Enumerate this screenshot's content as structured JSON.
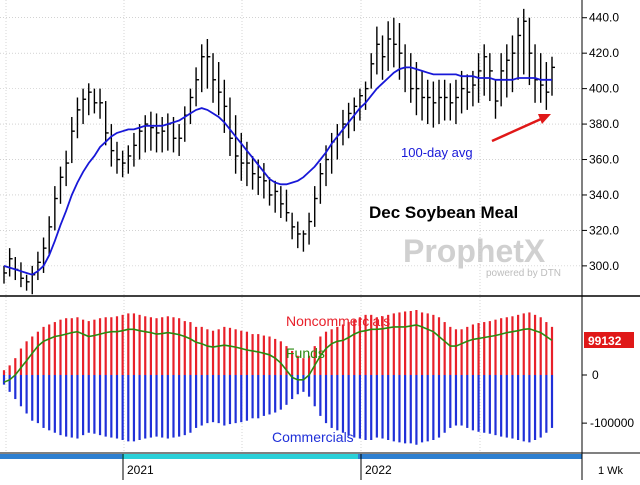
{
  "chart_data": [
    {
      "type": "line",
      "title": "Dec Soybean Meal",
      "subtitle": "",
      "xlabel": "",
      "ylabel": "",
      "ylim": [
        283,
        450
      ],
      "y_ticks": [
        300,
        320,
        340,
        360,
        380,
        400,
        420,
        440
      ],
      "grid": true,
      "annotations": [
        "100-day avg"
      ],
      "watermark": {
        "brand": "ProphetX",
        "tagline": "powered by DTN"
      },
      "series": [
        {
          "name": "Dec Soybean Meal (weekly range)",
          "type": "ohlc",
          "high": [
            300,
            310,
            305,
            302,
            295,
            300,
            308,
            316,
            328,
            345,
            356,
            365,
            384,
            395,
            400,
            403,
            400,
            400,
            393,
            380,
            370,
            365,
            368,
            375,
            380,
            385,
            387,
            386,
            384,
            386,
            384,
            380,
            390,
            400,
            412,
            425,
            428,
            420,
            415,
            405,
            395,
            385,
            375,
            370,
            362,
            360,
            358,
            350,
            348,
            345,
            343,
            330,
            325,
            320,
            330,
            345,
            358,
            368,
            375,
            380,
            388,
            392,
            395,
            400,
            404,
            420,
            435,
            430,
            438,
            440,
            437,
            425,
            420,
            415,
            410,
            405,
            404,
            405,
            405,
            403,
            405,
            410,
            408,
            410,
            420,
            425,
            420,
            405,
            420,
            425,
            430,
            440,
            445,
            440,
            425,
            420,
            415,
            418
          ],
          "low": [
            290,
            294,
            292,
            288,
            286,
            284,
            292,
            296,
            306,
            320,
            335,
            345,
            358,
            372,
            380,
            385,
            386,
            383,
            368,
            356,
            352,
            350,
            352,
            356,
            360,
            364,
            365,
            364,
            364,
            365,
            364,
            362,
            370,
            380,
            390,
            398,
            400,
            392,
            385,
            375,
            362,
            352,
            348,
            345,
            343,
            340,
            338,
            334,
            330,
            327,
            325,
            315,
            310,
            308,
            312,
            322,
            335,
            345,
            352,
            360,
            368,
            372,
            376,
            382,
            388,
            400,
            408,
            405,
            410,
            412,
            405,
            398,
            392,
            385,
            382,
            380,
            378,
            380,
            382,
            382,
            380,
            386,
            388,
            390,
            392,
            396,
            393,
            383,
            390,
            395,
            398,
            405,
            408,
            402,
            392,
            392,
            388,
            396
          ],
          "close": [
            296,
            304,
            298,
            293,
            291,
            295,
            302,
            310,
            322,
            338,
            350,
            358,
            376,
            388,
            394,
            398,
            392,
            392,
            375,
            365,
            360,
            358,
            362,
            368,
            376,
            380,
            378,
            375,
            376,
            380,
            372,
            372,
            385,
            395,
            405,
            418,
            418,
            405,
            398,
            390,
            372,
            362,
            358,
            358,
            352,
            350,
            348,
            340,
            342,
            335,
            330,
            322,
            318,
            318,
            325,
            338,
            352,
            360,
            370,
            374,
            380,
            386,
            390,
            396,
            400,
            414,
            425,
            418,
            428,
            425,
            420,
            412,
            400,
            400,
            395,
            395,
            392,
            395,
            395,
            392,
            395,
            400,
            398,
            402,
            410,
            418,
            410,
            393,
            410,
            416,
            420,
            430,
            438,
            420,
            405,
            402,
            398,
            412
          ]
        },
        {
          "name": "100-day avg",
          "type": "line",
          "values": [
            300,
            299,
            298,
            297,
            296,
            295,
            297,
            300,
            306,
            314,
            323,
            331,
            340,
            347,
            353,
            358,
            362,
            367,
            370,
            373,
            375,
            376,
            377,
            377,
            378,
            379,
            379,
            379,
            379,
            380,
            381,
            382,
            384,
            386,
            388,
            389,
            388,
            386,
            384,
            381,
            377,
            373,
            369,
            365,
            361,
            357,
            353,
            349,
            347,
            346,
            346,
            347,
            348,
            350,
            353,
            356,
            360,
            364,
            369,
            373,
            377,
            381,
            385,
            389,
            392,
            396,
            400,
            403,
            406,
            409,
            411,
            412,
            412,
            411,
            410,
            409,
            408,
            408,
            408,
            408,
            408,
            407,
            407,
            407,
            406,
            406,
            406,
            405,
            405,
            405,
            405,
            406,
            406,
            406,
            406,
            405,
            405,
            405
          ]
        }
      ]
    },
    {
      "type": "bar",
      "title": "",
      "xlabel": "",
      "ylabel": "",
      "ylim": [
        -160000,
        160000
      ],
      "y_ticks": [
        0,
        -100000
      ],
      "y_tick_labels": [
        "0",
        "-100000"
      ],
      "current_value_label": "99132",
      "series": [
        {
          "name": "Noncommercials",
          "color": "#e8202a",
          "values": [
            10000,
            20000,
            35000,
            55000,
            70000,
            80000,
            90000,
            100000,
            105000,
            110000,
            115000,
            118000,
            118000,
            120000,
            115000,
            112000,
            115000,
            118000,
            120000,
            120000,
            122000,
            125000,
            128000,
            128000,
            125000,
            122000,
            120000,
            118000,
            120000,
            122000,
            120000,
            118000,
            112000,
            110000,
            100000,
            100000,
            95000,
            92000,
            95000,
            100000,
            98000,
            95000,
            92000,
            90000,
            85000,
            85000,
            82000,
            80000,
            75000,
            70000,
            60000,
            50000,
            40000,
            35000,
            40000,
            60000,
            80000,
            90000,
            95000,
            100000,
            105000,
            110000,
            115000,
            120000,
            125000,
            125000,
            120000,
            122000,
            125000,
            128000,
            130000,
            132000,
            133000,
            135000,
            130000,
            128000,
            125000,
            120000,
            110000,
            100000,
            95000,
            95000,
            100000,
            105000,
            108000,
            110000,
            112000,
            115000,
            118000,
            120000,
            122000,
            125000,
            128000,
            130000,
            125000,
            120000,
            110000,
            100000
          ]
        },
        {
          "name": "Funds",
          "color": "#2a8a10",
          "values": [
            -15000,
            -10000,
            0,
            15000,
            30000,
            45000,
            60000,
            70000,
            75000,
            80000,
            82000,
            85000,
            88000,
            90000,
            85000,
            80000,
            82000,
            85000,
            88000,
            90000,
            90000,
            92000,
            95000,
            95000,
            92000,
            90000,
            88000,
            85000,
            86000,
            88000,
            86000,
            84000,
            80000,
            75000,
            68000,
            65000,
            60000,
            58000,
            60000,
            62000,
            60000,
            58000,
            55000,
            52000,
            50000,
            48000,
            45000,
            42000,
            35000,
            25000,
            10000,
            -5000,
            -10000,
            -10000,
            0,
            20000,
            40000,
            55000,
            65000,
            70000,
            72000,
            78000,
            85000,
            90000,
            92000,
            95000,
            95000,
            96000,
            98000,
            100000,
            100000,
            100000,
            102000,
            104000,
            100000,
            95000,
            90000,
            80000,
            70000,
            60000,
            60000,
            65000,
            70000,
            74000,
            76000,
            78000,
            80000,
            82000,
            85000,
            88000,
            90000,
            92000,
            95000,
            96000,
            92000,
            88000,
            80000,
            72000
          ]
        },
        {
          "name": "Commercials",
          "color": "#2030d8",
          "values": [
            -20000,
            -35000,
            -50000,
            -65000,
            -80000,
            -95000,
            -100000,
            -110000,
            -115000,
            -120000,
            -125000,
            -128000,
            -130000,
            -132000,
            -125000,
            -120000,
            -122000,
            -125000,
            -128000,
            -130000,
            -132000,
            -135000,
            -138000,
            -138000,
            -135000,
            -132000,
            -130000,
            -128000,
            -130000,
            -132000,
            -130000,
            -128000,
            -125000,
            -120000,
            -110000,
            -105000,
            -100000,
            -98000,
            -100000,
            -105000,
            -102000,
            -100000,
            -98000,
            -95000,
            -90000,
            -90000,
            -85000,
            -82000,
            -78000,
            -72000,
            -62000,
            -50000,
            -40000,
            -35000,
            -45000,
            -65000,
            -85000,
            -100000,
            -110000,
            -115000,
            -120000,
            -125000,
            -130000,
            -132000,
            -135000,
            -135000,
            -130000,
            -132000,
            -135000,
            -138000,
            -140000,
            -142000,
            -142000,
            -145000,
            -140000,
            -138000,
            -135000,
            -130000,
            -120000,
            -110000,
            -105000,
            -105000,
            -110000,
            -115000,
            -118000,
            -120000,
            -122000,
            -125000,
            -128000,
            -130000,
            -132000,
            -135000,
            -138000,
            -140000,
            -135000,
            -130000,
            -120000,
            -110000
          ]
        }
      ]
    }
  ],
  "x_axis": {
    "labels": [
      "2021",
      "2022"
    ],
    "period": "1 Wk"
  },
  "colors": {
    "background": "#ffffff",
    "grid": "#b8b8b8",
    "bars": "#000000",
    "avg": "#1818d8",
    "arrow": "#e01818",
    "non_color": "#e8202a",
    "funds_color": "#2a8a10",
    "comm_color": "#2030d8",
    "value_box": "#e01818",
    "scroll_blue": "#2d7fd0",
    "scroll_cyan": "#2ad0d8"
  }
}
